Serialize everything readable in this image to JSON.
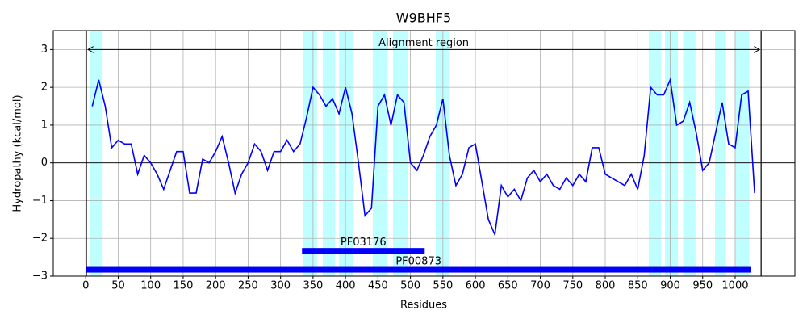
{
  "chart_data": {
    "type": "line",
    "title": "W9BHF5",
    "x_label": "Residues",
    "y_label": "Hydropathy (kcal/mol)",
    "xlim": [
      -50,
      1092
    ],
    "ylim": [
      -3,
      3.5
    ],
    "xticks": [
      0,
      50,
      100,
      150,
      200,
      250,
      300,
      350,
      400,
      450,
      500,
      550,
      600,
      650,
      700,
      750,
      800,
      850,
      900,
      950,
      1000
    ],
    "yticks": [
      {
        "value": -3,
        "label": "−3"
      },
      {
        "value": -2,
        "label": "−2"
      },
      {
        "value": -1,
        "label": "−1"
      },
      0,
      1,
      2,
      3
    ],
    "grid": true,
    "x": [
      10,
      20,
      30,
      40,
      50,
      60,
      70,
      80,
      90,
      100,
      110,
      120,
      130,
      140,
      150,
      160,
      170,
      180,
      190,
      200,
      210,
      220,
      230,
      240,
      250,
      260,
      270,
      280,
      290,
      300,
      310,
      320,
      330,
      340,
      350,
      360,
      370,
      380,
      390,
      400,
      410,
      420,
      430,
      440,
      450,
      460,
      470,
      480,
      490,
      500,
      510,
      520,
      530,
      540,
      550,
      560,
      570,
      580,
      590,
      600,
      610,
      620,
      630,
      640,
      650,
      660,
      670,
      680,
      690,
      700,
      710,
      720,
      730,
      740,
      750,
      760,
      770,
      780,
      790,
      800,
      810,
      820,
      830,
      840,
      850,
      860,
      870,
      880,
      890,
      900,
      910,
      920,
      930,
      940,
      950,
      960,
      970,
      980,
      990,
      1000,
      1010,
      1020,
      1030
    ],
    "series": [
      {
        "color": "#0000ff",
        "values": [
          1.5,
          2.2,
          1.5,
          0.4,
          0.6,
          0.5,
          0.5,
          -0.3,
          0.2,
          0.0,
          -0.3,
          -0.7,
          -0.2,
          0.3,
          0.3,
          -0.8,
          -0.8,
          0.1,
          0.0,
          0.3,
          0.7,
          0.0,
          -0.8,
          -0.3,
          0.0,
          0.5,
          0.3,
          -0.2,
          0.3,
          0.3,
          0.6,
          0.3,
          0.5,
          1.2,
          2.0,
          1.8,
          1.5,
          1.7,
          1.3,
          2.0,
          1.3,
          0.0,
          -1.4,
          -1.2,
          1.5,
          1.8,
          1.0,
          1.8,
          1.6,
          0.0,
          -0.2,
          0.2,
          0.7,
          1.0,
          1.7,
          0.2,
          -0.6,
          -0.3,
          0.4,
          0.5,
          -0.5,
          -1.5,
          -1.9,
          -0.6,
          -0.9,
          -0.7,
          -1.0,
          -0.4,
          -0.2,
          -0.5,
          -0.3,
          -0.6,
          -0.7,
          -0.4,
          -0.6,
          -0.3,
          -0.5,
          0.4,
          0.4,
          -0.3,
          -0.4,
          -0.5,
          -0.6,
          -0.3,
          -0.7,
          0.2,
          2.0,
          1.8,
          1.8,
          2.2,
          1.0,
          1.1,
          1.6,
          0.8,
          -0.2,
          0.0,
          0.8,
          1.6,
          0.5,
          0.4,
          1.8,
          1.9,
          -0.8
        ]
      }
    ],
    "regions": [
      [
        7,
        26
      ],
      [
        334,
        356
      ],
      [
        365,
        384
      ],
      [
        390,
        411
      ],
      [
        442,
        465
      ],
      [
        473,
        496
      ],
      [
        539,
        560
      ],
      [
        867,
        886
      ],
      [
        892,
        912
      ],
      [
        920,
        939
      ],
      [
        969,
        986
      ],
      [
        1000,
        1022
      ]
    ],
    "alignment": {
      "label": "Alignment region",
      "start": 1,
      "end": 1040,
      "y": 3
    },
    "domains": [
      {
        "name": "PF03176",
        "start": 333,
        "end": 522,
        "y": -2.33
      },
      {
        "name": "PF00873",
        "start": 1,
        "end": 1024,
        "y": -2.83
      }
    ]
  }
}
